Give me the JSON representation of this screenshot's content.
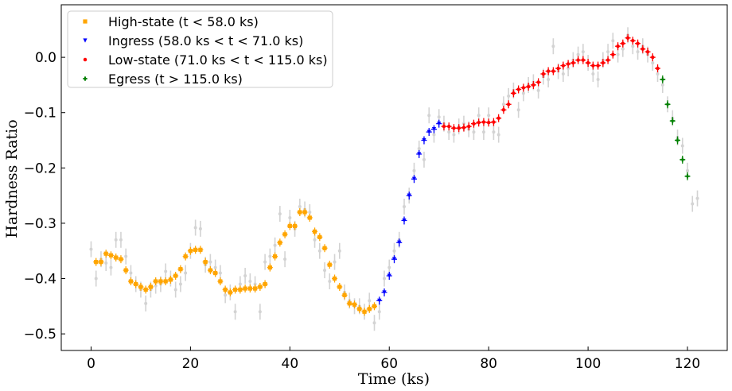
{
  "chart_data": {
    "type": "scatter",
    "title": "",
    "xlabel": "Time (ks)",
    "ylabel": "Hardness Ratio",
    "xlim": [
      -6,
      128
    ],
    "ylim": [
      -0.53,
      0.095
    ],
    "xticks": [
      0,
      20,
      40,
      60,
      80,
      100,
      120
    ],
    "yticks": [
      -0.5,
      -0.4,
      -0.3,
      -0.2,
      -0.1,
      0.0
    ],
    "xtick_labels": [
      "0",
      "20",
      "40",
      "60",
      "80",
      "100",
      "120"
    ],
    "ytick_labels": [
      "−0.5",
      "−0.4",
      "−0.3",
      "−0.2",
      "−0.1",
      "0.0"
    ],
    "grid": false,
    "legend_position": "top-left",
    "background_series": {
      "name": "",
      "color": "#d3d3d3",
      "points": [
        [
          0,
          -0.347
        ],
        [
          1,
          -0.4
        ],
        [
          2,
          -0.365
        ],
        [
          3,
          -0.372
        ],
        [
          4,
          -0.38
        ],
        [
          5,
          -0.33
        ],
        [
          6,
          -0.33
        ],
        [
          7,
          -0.36
        ],
        [
          8,
          -0.39
        ],
        [
          9,
          -0.41
        ],
        [
          10,
          -0.42
        ],
        [
          11,
          -0.445
        ],
        [
          12,
          -0.42
        ],
        [
          13,
          -0.413
        ],
        [
          14,
          -0.41
        ],
        [
          15,
          -0.387
        ],
        [
          16,
          -0.4
        ],
        [
          17,
          -0.42
        ],
        [
          18,
          -0.41
        ],
        [
          19,
          -0.39
        ],
        [
          20,
          -0.35
        ],
        [
          21,
          -0.308
        ],
        [
          22,
          -0.31
        ],
        [
          23,
          -0.375
        ],
        [
          24,
          -0.37
        ],
        [
          25,
          -0.38
        ],
        [
          26,
          -0.39
        ],
        [
          27,
          -0.43
        ],
        [
          28,
          -0.425
        ],
        [
          29,
          -0.46
        ],
        [
          30,
          -0.41
        ],
        [
          31,
          -0.395
        ],
        [
          32,
          -0.405
        ],
        [
          33,
          -0.41
        ],
        [
          34,
          -0.46
        ],
        [
          35,
          -0.37
        ],
        [
          36,
          -0.36
        ],
        [
          37,
          -0.34
        ],
        [
          38,
          -0.283
        ],
        [
          39,
          -0.365
        ],
        [
          40,
          -0.29
        ],
        [
          41,
          -0.31
        ],
        [
          42,
          -0.27
        ],
        [
          43,
          -0.275
        ],
        [
          44,
          -0.28
        ],
        [
          45,
          -0.33
        ],
        [
          46,
          -0.35
        ],
        [
          47,
          -0.385
        ],
        [
          48,
          -0.405
        ],
        [
          49,
          -0.37
        ],
        [
          50,
          -0.35
        ],
        [
          51,
          -0.425
        ],
        [
          52,
          -0.44
        ],
        [
          53,
          -0.45
        ],
        [
          54,
          -0.45
        ],
        [
          55,
          -0.46
        ],
        [
          56,
          -0.44
        ],
        [
          57,
          -0.48
        ],
        [
          58,
          -0.46
        ],
        [
          59,
          -0.4
        ],
        [
          60,
          -0.38
        ],
        [
          61,
          -0.35
        ],
        [
          62,
          -0.33
        ],
        [
          63,
          -0.27
        ],
        [
          64,
          -0.25
        ],
        [
          65,
          -0.205
        ],
        [
          66,
          -0.165
        ],
        [
          67,
          -0.185
        ],
        [
          68,
          -0.105
        ],
        [
          69,
          -0.14
        ],
        [
          70,
          -0.108
        ],
        [
          71,
          -0.12
        ],
        [
          72,
          -0.135
        ],
        [
          73,
          -0.14
        ],
        [
          74,
          -0.125
        ],
        [
          75,
          -0.12
        ],
        [
          76,
          -0.13
        ],
        [
          77,
          -0.135
        ],
        [
          78,
          -0.105
        ],
        [
          79,
          -0.135
        ],
        [
          80,
          -0.105
        ],
        [
          81,
          -0.135
        ],
        [
          82,
          -0.14
        ],
        [
          83,
          -0.085
        ],
        [
          84,
          -0.07
        ],
        [
          85,
          -0.06
        ],
        [
          86,
          -0.095
        ],
        [
          87,
          -0.065
        ],
        [
          88,
          -0.05
        ],
        [
          89,
          -0.045
        ],
        [
          90,
          -0.06
        ],
        [
          91,
          -0.035
        ],
        [
          92,
          -0.04
        ],
        [
          93,
          0.02
        ],
        [
          94,
          -0.025
        ],
        [
          95,
          -0.03
        ],
        [
          96,
          -0.02
        ],
        [
          97,
          -0.005
        ],
        [
          98,
          0.005
        ],
        [
          99,
          0.01
        ],
        [
          100,
          -0.01
        ],
        [
          101,
          -0.03
        ],
        [
          102,
          -0.04
        ],
        [
          103,
          -0.005
        ],
        [
          104,
          0.01
        ],
        [
          105,
          0.03
        ],
        [
          106,
          0.005
        ],
        [
          107,
          0.015
        ],
        [
          108,
          0.04
        ],
        [
          109,
          0.02
        ],
        [
          110,
          0.01
        ],
        [
          111,
          0.02
        ],
        [
          112,
          0.005
        ],
        [
          113,
          -0.01
        ],
        [
          114,
          -0.03
        ],
        [
          115,
          -0.05
        ],
        [
          116,
          -0.085
        ],
        [
          117,
          -0.11
        ],
        [
          118,
          -0.145
        ],
        [
          119,
          -0.16
        ],
        [
          120,
          -0.205
        ],
        [
          121,
          -0.265
        ],
        [
          122,
          -0.255
        ]
      ]
    },
    "series": [
      {
        "name": "High-state (t < 58.0 ks)",
        "color": "#ffa500",
        "marker": "square",
        "x": [
          1,
          2,
          3,
          4,
          5,
          6,
          7,
          8,
          9,
          10,
          11,
          12,
          13,
          14,
          15,
          16,
          17,
          18,
          19,
          20,
          21,
          22,
          23,
          24,
          25,
          26,
          27,
          28,
          29,
          30,
          31,
          32,
          33,
          34,
          35,
          36,
          37,
          38,
          39,
          40,
          41,
          42,
          43,
          44,
          45,
          46,
          47,
          48,
          49,
          50,
          51,
          52,
          53,
          54,
          55,
          56,
          57
        ],
        "y": [
          -0.37,
          -0.37,
          -0.355,
          -0.358,
          -0.362,
          -0.365,
          -0.385,
          -0.405,
          -0.41,
          -0.415,
          -0.42,
          -0.415,
          -0.405,
          -0.405,
          -0.405,
          -0.402,
          -0.395,
          -0.383,
          -0.36,
          -0.35,
          -0.348,
          -0.348,
          -0.37,
          -0.385,
          -0.39,
          -0.405,
          -0.42,
          -0.425,
          -0.42,
          -0.42,
          -0.418,
          -0.418,
          -0.418,
          -0.415,
          -0.41,
          -0.38,
          -0.36,
          -0.335,
          -0.32,
          -0.305,
          -0.305,
          -0.28,
          -0.28,
          -0.29,
          -0.315,
          -0.325,
          -0.345,
          -0.375,
          -0.4,
          -0.415,
          -0.43,
          -0.445,
          -0.447,
          -0.455,
          -0.46,
          -0.455,
          -0.45
        ]
      },
      {
        "name": "Ingress (58.0 ks < t < 71.0 ks)",
        "color": "#0000ff",
        "marker": "triangle-down",
        "x": [
          58,
          59,
          60,
          61,
          62,
          63,
          64,
          65,
          66,
          67,
          68,
          69,
          70
        ],
        "y": [
          -0.44,
          -0.425,
          -0.395,
          -0.365,
          -0.335,
          -0.295,
          -0.25,
          -0.22,
          -0.175,
          -0.15,
          -0.135,
          -0.13,
          -0.12
        ]
      },
      {
        "name": "Low-state (71.0 ks < t < 115.0 ks)",
        "color": "#ff0000",
        "marker": "circle",
        "x": [
          71,
          72,
          73,
          74,
          75,
          76,
          77,
          78,
          79,
          80,
          81,
          82,
          83,
          84,
          85,
          86,
          87,
          88,
          89,
          90,
          91,
          92,
          93,
          94,
          95,
          96,
          97,
          98,
          99,
          100,
          101,
          102,
          103,
          104,
          105,
          106,
          107,
          108,
          109,
          110,
          111,
          112,
          113,
          114
        ],
        "y": [
          -0.125,
          -0.125,
          -0.128,
          -0.128,
          -0.127,
          -0.125,
          -0.12,
          -0.118,
          -0.117,
          -0.118,
          -0.117,
          -0.11,
          -0.095,
          -0.085,
          -0.065,
          -0.058,
          -0.055,
          -0.053,
          -0.05,
          -0.045,
          -0.03,
          -0.025,
          -0.025,
          -0.02,
          -0.015,
          -0.012,
          -0.01,
          -0.005,
          -0.005,
          -0.01,
          -0.015,
          -0.015,
          -0.01,
          -0.005,
          0.005,
          0.02,
          0.025,
          0.035,
          0.03,
          0.025,
          0.015,
          0.01,
          0.0,
          -0.02
        ]
      },
      {
        "name": "Egress (t > 115.0 ks)",
        "color": "#008000",
        "marker": "plus",
        "x": [
          115,
          116,
          117,
          118,
          119,
          120
        ],
        "y": [
          -0.04,
          -0.085,
          -0.115,
          -0.15,
          -0.185,
          -0.215
        ]
      }
    ]
  }
}
